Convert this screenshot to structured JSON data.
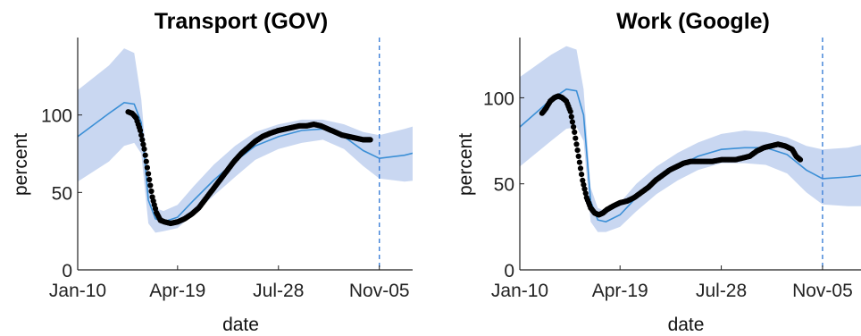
{
  "colors": {
    "model_line": "#3b8fd6",
    "band_fill": "#c9d7f1",
    "observed": "#000000",
    "vline": "#3b7fd8",
    "axis": "#222222"
  },
  "chart_data": [
    {
      "type": "line",
      "title": "Transport (GOV)",
      "xlabel": "date",
      "ylabel": "percent",
      "x_ticks": [
        "Jan-10",
        "Apr-19",
        "Jul-28",
        "Nov-05"
      ],
      "y_ticks": [
        0,
        50,
        100
      ],
      "ylim": [
        0,
        150
      ],
      "vline_at": "Nov-05",
      "grid": false,
      "series": [
        {
          "kind": "model",
          "x": [
            "Jan-10",
            "Feb-10",
            "Feb-25",
            "Mar-07",
            "Mar-14",
            "Mar-21",
            "Mar-28",
            "Apr-05",
            "Apr-19",
            "May-05",
            "May-25",
            "Jun-15",
            "Jul-05",
            "Jul-28",
            "Aug-20",
            "Sep-10",
            "Oct-01",
            "Oct-20",
            "Nov-05",
            "Nov-30",
            "Dec-31"
          ],
          "y": [
            86,
            101,
            108,
            107,
            95,
            45,
            33,
            31,
            34,
            45,
            58,
            70,
            80,
            86,
            90,
            91,
            86,
            77,
            72,
            74,
            79
          ]
        },
        {
          "kind": "band_upper",
          "x": [
            "Jan-10",
            "Feb-10",
            "Feb-25",
            "Mar-07",
            "Mar-14",
            "Mar-21",
            "Mar-28",
            "Apr-05",
            "Apr-19",
            "May-05",
            "May-25",
            "Jun-15",
            "Jul-05",
            "Jul-28",
            "Aug-20",
            "Sep-10",
            "Oct-01",
            "Oct-20",
            "Nov-05",
            "Nov-30",
            "Dec-31"
          ],
          "y": [
            116,
            132,
            143,
            140,
            110,
            58,
            40,
            38,
            42,
            54,
            68,
            80,
            89,
            94,
            97,
            97,
            94,
            89,
            87,
            91,
            97
          ]
        },
        {
          "kind": "band_lower",
          "x": [
            "Jan-10",
            "Feb-10",
            "Feb-25",
            "Mar-07",
            "Mar-14",
            "Mar-21",
            "Mar-28",
            "Apr-05",
            "Apr-19",
            "May-05",
            "May-25",
            "Jun-15",
            "Jul-05",
            "Jul-28",
            "Aug-20",
            "Sep-10",
            "Oct-01",
            "Oct-20",
            "Nov-05",
            "Nov-30",
            "Dec-31"
          ],
          "y": [
            57,
            70,
            80,
            82,
            75,
            30,
            24,
            25,
            27,
            36,
            48,
            60,
            71,
            78,
            82,
            84,
            78,
            67,
            59,
            57,
            59
          ]
        },
        {
          "kind": "observed",
          "x": [
            "Mar-01",
            "Mar-05",
            "Mar-09",
            "Mar-13",
            "Mar-17",
            "Mar-21",
            "Mar-25",
            "Mar-29",
            "Apr-02",
            "Apr-06",
            "Apr-12",
            "Apr-19",
            "Apr-26",
            "May-03",
            "May-10",
            "May-17",
            "May-24",
            "May-31",
            "Jun-07",
            "Jun-14",
            "Jun-21",
            "Jun-28",
            "Jul-05",
            "Jul-12",
            "Jul-19",
            "Jul-28",
            "Aug-04",
            "Aug-11",
            "Aug-18",
            "Aug-25",
            "Sep-01",
            "Sep-08",
            "Sep-15",
            "Sep-22",
            "Sep-29",
            "Oct-06",
            "Oct-13",
            "Oct-20",
            "Oct-27"
          ],
          "y": [
            102,
            101,
            98,
            90,
            78,
            62,
            47,
            37,
            32,
            31,
            30,
            31,
            33,
            36,
            40,
            46,
            52,
            58,
            64,
            70,
            75,
            79,
            83,
            86,
            88,
            90,
            91,
            92,
            93,
            93,
            94,
            93,
            91,
            89,
            87,
            86,
            85,
            84,
            84
          ]
        }
      ]
    },
    {
      "type": "line",
      "title": "Work (Google)",
      "xlabel": "date",
      "ylabel": "percent",
      "x_ticks": [
        "Jan-10",
        "Apr-19",
        "Jul-28",
        "Nov-05"
      ],
      "y_ticks": [
        0,
        50,
        100
      ],
      "ylim": [
        0,
        135
      ],
      "vline_at": "Nov-05",
      "grid": false,
      "series": [
        {
          "kind": "model",
          "x": [
            "Jan-10",
            "Feb-10",
            "Feb-25",
            "Mar-07",
            "Mar-14",
            "Mar-21",
            "Mar-28",
            "Apr-05",
            "Apr-19",
            "May-05",
            "May-25",
            "Jun-15",
            "Jul-05",
            "Jul-28",
            "Aug-20",
            "Sep-10",
            "Oct-01",
            "Oct-20",
            "Nov-05",
            "Nov-30",
            "Dec-31"
          ],
          "y": [
            83,
            99,
            105,
            104,
            90,
            40,
            29,
            28,
            32,
            42,
            52,
            60,
            66,
            70,
            71,
            71,
            67,
            58,
            53,
            54,
            56
          ]
        },
        {
          "kind": "band_upper",
          "x": [
            "Jan-10",
            "Feb-10",
            "Feb-25",
            "Mar-07",
            "Mar-14",
            "Mar-21",
            "Mar-28",
            "Apr-05",
            "Apr-19",
            "May-05",
            "May-25",
            "Jun-15",
            "Jul-05",
            "Jul-28",
            "Aug-20",
            "Sep-10",
            "Oct-01",
            "Oct-20",
            "Nov-05",
            "Nov-30",
            "Dec-31"
          ],
          "y": [
            112,
            125,
            130,
            128,
            105,
            48,
            36,
            34,
            39,
            50,
            60,
            68,
            74,
            79,
            81,
            80,
            77,
            72,
            70,
            71,
            75
          ]
        },
        {
          "kind": "band_lower",
          "x": [
            "Jan-10",
            "Feb-10",
            "Feb-25",
            "Mar-07",
            "Mar-14",
            "Mar-21",
            "Mar-28",
            "Apr-05",
            "Apr-19",
            "May-05",
            "May-25",
            "Jun-15",
            "Jul-05",
            "Jul-28",
            "Aug-20",
            "Sep-10",
            "Oct-01",
            "Oct-20",
            "Nov-05",
            "Nov-30",
            "Dec-31"
          ],
          "y": [
            60,
            75,
            82,
            83,
            75,
            28,
            22,
            22,
            25,
            34,
            44,
            52,
            58,
            62,
            62,
            61,
            56,
            45,
            38,
            37,
            37
          ]
        },
        {
          "kind": "observed",
          "x": [
            "Feb-01",
            "Feb-05",
            "Feb-09",
            "Feb-13",
            "Feb-17",
            "Feb-21",
            "Feb-25",
            "Mar-01",
            "Mar-05",
            "Mar-09",
            "Mar-13",
            "Mar-17",
            "Mar-21",
            "Mar-25",
            "Mar-29",
            "Apr-02",
            "Apr-06",
            "Apr-12",
            "Apr-19",
            "Apr-26",
            "May-03",
            "May-10",
            "May-17",
            "May-24",
            "May-31",
            "Jun-07",
            "Jun-14",
            "Jun-21",
            "Jun-28",
            "Jul-05",
            "Jul-12",
            "Jul-19",
            "Jul-28",
            "Aug-04",
            "Aug-11",
            "Aug-18",
            "Aug-25",
            "Sep-01",
            "Sep-08",
            "Sep-15",
            "Sep-22",
            "Sep-29",
            "Oct-06",
            "Oct-10",
            "Oct-14"
          ],
          "y": [
            91,
            94,
            98,
            100,
            101,
            100,
            98,
            92,
            80,
            66,
            52,
            42,
            36,
            33,
            32,
            33,
            35,
            37,
            39,
            40,
            42,
            45,
            48,
            52,
            55,
            58,
            60,
            62,
            63,
            63,
            63,
            63,
            64,
            64,
            64,
            65,
            66,
            69,
            71,
            72,
            73,
            72,
            70,
            66,
            64
          ]
        }
      ]
    }
  ]
}
